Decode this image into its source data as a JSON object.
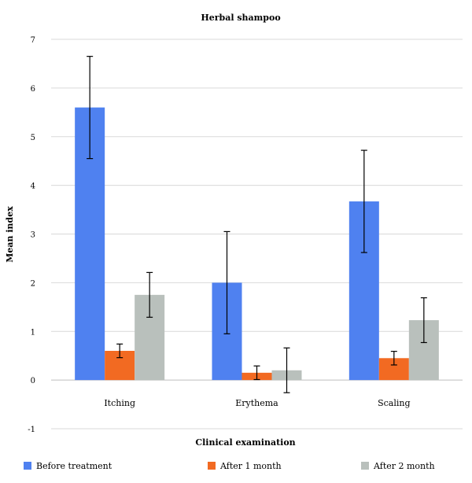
{
  "chart_data": {
    "type": "bar",
    "title": "Herbal shampoo",
    "xlabel": "Clinical examination",
    "ylabel": "Mean index",
    "ylim": [
      -1,
      7
    ],
    "yticks": [
      -1,
      0,
      1,
      2,
      3,
      4,
      5,
      6,
      7
    ],
    "grid": true,
    "legend_position": "bottom",
    "categories": [
      "Itching",
      "Erythema",
      "Scaling"
    ],
    "series": [
      {
        "name": "Before treatment",
        "color": "#4f81f0",
        "values": [
          5.6,
          2.0,
          3.67
        ],
        "error": [
          1.05,
          1.05,
          1.05
        ]
      },
      {
        "name": "After 1 month",
        "color": "#f26a22",
        "values": [
          0.6,
          0.15,
          0.45
        ],
        "error": [
          0.14,
          0.14,
          0.14
        ]
      },
      {
        "name": "After 2 month",
        "color": "#b9c0bc",
        "values": [
          1.75,
          0.2,
          1.23
        ],
        "error": [
          0.46,
          0.46,
          0.46
        ]
      }
    ]
  }
}
